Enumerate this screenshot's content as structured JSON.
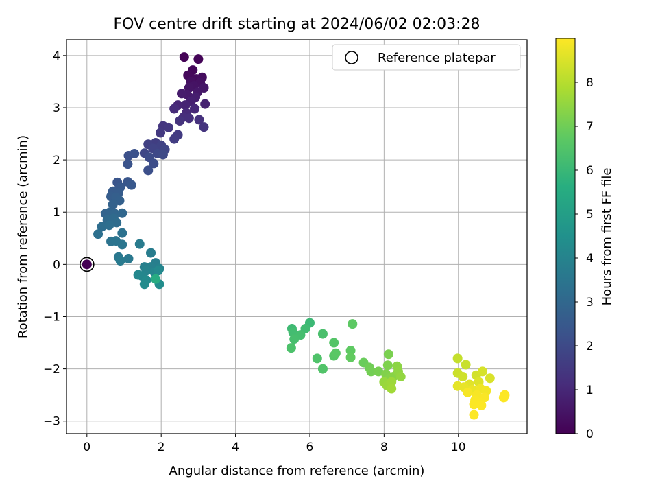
{
  "chart_data": {
    "type": "scatter",
    "title": "FOV centre drift starting at 2024/06/02 02:03:28",
    "xlabel": "Angular distance from reference (arcmin)",
    "ylabel": "Rotation from reference (arcmin)",
    "xlim": [
      -0.55,
      11.85
    ],
    "ylim": [
      -3.24,
      4.3
    ],
    "xticks": [
      0,
      2,
      4,
      6,
      8,
      10
    ],
    "yticks": [
      -3,
      -2,
      -1,
      0,
      1,
      2,
      3,
      4
    ],
    "grid": true,
    "legend": {
      "placement": "top-right",
      "entries": [
        "Reference platepar"
      ]
    },
    "colorbar": {
      "label": "Hours from first FF file",
      "min": 0,
      "max": 9.0,
      "ticks": [
        0,
        1,
        2,
        3,
        4,
        5,
        6,
        7,
        8
      ],
      "colormap": "viridis"
    },
    "reference_point": {
      "x": 0,
      "y": 0,
      "label": "Reference platepar"
    },
    "points": [
      {
        "x": 2.62,
        "y": 3.97,
        "h": 0.05
      },
      {
        "x": 3.0,
        "y": 3.93,
        "h": 0.1
      },
      {
        "x": 2.85,
        "y": 3.72,
        "h": 0.15
      },
      {
        "x": 2.72,
        "y": 3.62,
        "h": 0.2
      },
      {
        "x": 2.95,
        "y": 3.55,
        "h": 0.25
      },
      {
        "x": 3.1,
        "y": 3.58,
        "h": 0.3
      },
      {
        "x": 2.8,
        "y": 3.5,
        "h": 0.35
      },
      {
        "x": 3.05,
        "y": 3.48,
        "h": 0.4
      },
      {
        "x": 2.88,
        "y": 3.42,
        "h": 0.45
      },
      {
        "x": 2.75,
        "y": 3.38,
        "h": 0.5
      },
      {
        "x": 3.15,
        "y": 3.38,
        "h": 0.55
      },
      {
        "x": 2.98,
        "y": 3.3,
        "h": 0.6
      },
      {
        "x": 2.7,
        "y": 3.25,
        "h": 0.65
      },
      {
        "x": 2.55,
        "y": 3.27,
        "h": 0.7
      },
      {
        "x": 2.92,
        "y": 3.2,
        "h": 0.75
      },
      {
        "x": 2.8,
        "y": 3.12,
        "h": 0.8
      },
      {
        "x": 3.18,
        "y": 3.07,
        "h": 0.85
      },
      {
        "x": 2.65,
        "y": 3.05,
        "h": 0.9
      },
      {
        "x": 2.45,
        "y": 3.05,
        "h": 0.95
      },
      {
        "x": 2.9,
        "y": 2.98,
        "h": 1.0
      },
      {
        "x": 2.68,
        "y": 2.9,
        "h": 1.05
      },
      {
        "x": 2.35,
        "y": 2.98,
        "h": 1.1
      },
      {
        "x": 2.6,
        "y": 2.82,
        "h": 1.15
      },
      {
        "x": 2.75,
        "y": 2.8,
        "h": 1.2
      },
      {
        "x": 3.02,
        "y": 2.77,
        "h": 1.25
      },
      {
        "x": 2.5,
        "y": 2.75,
        "h": 1.3
      },
      {
        "x": 3.15,
        "y": 2.63,
        "h": 1.35
      },
      {
        "x": 2.05,
        "y": 2.65,
        "h": 1.4
      },
      {
        "x": 2.2,
        "y": 2.62,
        "h": 1.45
      },
      {
        "x": 1.98,
        "y": 2.52,
        "h": 1.5
      },
      {
        "x": 2.45,
        "y": 2.48,
        "h": 1.55
      },
      {
        "x": 2.35,
        "y": 2.4,
        "h": 1.6
      },
      {
        "x": 1.85,
        "y": 2.33,
        "h": 1.65
      },
      {
        "x": 1.65,
        "y": 2.3,
        "h": 1.7
      },
      {
        "x": 2.0,
        "y": 2.28,
        "h": 1.75
      },
      {
        "x": 1.78,
        "y": 2.22,
        "h": 1.8
      },
      {
        "x": 2.1,
        "y": 2.2,
        "h": 1.85
      },
      {
        "x": 1.55,
        "y": 2.13,
        "h": 1.9
      },
      {
        "x": 1.9,
        "y": 2.12,
        "h": 1.95
      },
      {
        "x": 2.05,
        "y": 2.1,
        "h": 2.0
      },
      {
        "x": 1.68,
        "y": 2.05,
        "h": 2.05
      },
      {
        "x": 1.8,
        "y": 1.93,
        "h": 2.1
      },
      {
        "x": 1.65,
        "y": 1.8,
        "h": 2.15
      },
      {
        "x": 1.12,
        "y": 2.08,
        "h": 2.2
      },
      {
        "x": 1.28,
        "y": 2.12,
        "h": 2.25
      },
      {
        "x": 1.1,
        "y": 1.92,
        "h": 2.3
      },
      {
        "x": 0.82,
        "y": 1.57,
        "h": 2.35
      },
      {
        "x": 1.1,
        "y": 1.58,
        "h": 2.4
      },
      {
        "x": 1.2,
        "y": 1.52,
        "h": 2.45
      },
      {
        "x": 0.9,
        "y": 1.48,
        "h": 2.5
      },
      {
        "x": 0.7,
        "y": 1.4,
        "h": 2.55
      },
      {
        "x": 0.85,
        "y": 1.37,
        "h": 2.6
      },
      {
        "x": 0.65,
        "y": 1.3,
        "h": 2.65
      },
      {
        "x": 0.78,
        "y": 1.28,
        "h": 2.7
      },
      {
        "x": 0.88,
        "y": 1.22,
        "h": 2.75
      },
      {
        "x": 0.7,
        "y": 1.15,
        "h": 2.8
      },
      {
        "x": 0.5,
        "y": 0.97,
        "h": 2.85
      },
      {
        "x": 0.62,
        "y": 1.0,
        "h": 2.9
      },
      {
        "x": 0.75,
        "y": 0.97,
        "h": 2.95
      },
      {
        "x": 0.95,
        "y": 0.98,
        "h": 3.0
      },
      {
        "x": 0.55,
        "y": 0.85,
        "h": 3.05
      },
      {
        "x": 0.72,
        "y": 0.88,
        "h": 3.1
      },
      {
        "x": 0.8,
        "y": 0.8,
        "h": 3.15
      },
      {
        "x": 0.4,
        "y": 0.72,
        "h": 3.2
      },
      {
        "x": 0.6,
        "y": 0.75,
        "h": 3.25
      },
      {
        "x": 0.3,
        "y": 0.58,
        "h": 3.3
      },
      {
        "x": 0.95,
        "y": 0.6,
        "h": 3.35
      },
      {
        "x": 0.65,
        "y": 0.44,
        "h": 3.4
      },
      {
        "x": 0.78,
        "y": 0.45,
        "h": 3.45
      },
      {
        "x": 0.95,
        "y": 0.38,
        "h": 3.5
      },
      {
        "x": 0.85,
        "y": 0.14,
        "h": 3.55
      },
      {
        "x": 1.12,
        "y": 0.11,
        "h": 3.6
      },
      {
        "x": 0.9,
        "y": 0.07,
        "h": 3.65
      },
      {
        "x": 1.42,
        "y": 0.39,
        "h": 3.7
      },
      {
        "x": 1.72,
        "y": 0.22,
        "h": 3.75
      },
      {
        "x": 1.85,
        "y": 0.03,
        "h": 3.8
      },
      {
        "x": 1.55,
        "y": -0.05,
        "h": 3.85
      },
      {
        "x": 1.72,
        "y": -0.05,
        "h": 3.9
      },
      {
        "x": 1.95,
        "y": -0.08,
        "h": 3.95
      },
      {
        "x": 1.6,
        "y": -0.12,
        "h": 4.0
      },
      {
        "x": 1.82,
        "y": -0.15,
        "h": 4.05
      },
      {
        "x": 1.48,
        "y": -0.22,
        "h": 4.1
      },
      {
        "x": 1.38,
        "y": -0.2,
        "h": 4.15
      },
      {
        "x": 1.92,
        "y": -0.12,
        "h": 4.2
      },
      {
        "x": 1.6,
        "y": -0.3,
        "h": 4.25
      },
      {
        "x": 1.55,
        "y": -0.38,
        "h": 4.3
      },
      {
        "x": 1.95,
        "y": -0.38,
        "h": 4.35
      },
      {
        "x": 1.85,
        "y": -0.28,
        "h": 5.5
      },
      {
        "x": 6.0,
        "y": -1.12,
        "h": 6.05
      },
      {
        "x": 5.52,
        "y": -1.23,
        "h": 6.1
      },
      {
        "x": 5.88,
        "y": -1.23,
        "h": 6.15
      },
      {
        "x": 5.55,
        "y": -1.3,
        "h": 6.2
      },
      {
        "x": 5.75,
        "y": -1.35,
        "h": 6.25
      },
      {
        "x": 5.58,
        "y": -1.43,
        "h": 6.3
      },
      {
        "x": 6.35,
        "y": -1.33,
        "h": 6.35
      },
      {
        "x": 5.5,
        "y": -1.6,
        "h": 6.4
      },
      {
        "x": 6.2,
        "y": -1.8,
        "h": 6.45
      },
      {
        "x": 6.35,
        "y": -2.0,
        "h": 6.5
      },
      {
        "x": 6.65,
        "y": -1.5,
        "h": 6.55
      },
      {
        "x": 6.65,
        "y": -1.75,
        "h": 6.6
      },
      {
        "x": 6.7,
        "y": -1.7,
        "h": 6.65
      },
      {
        "x": 7.15,
        "y": -1.14,
        "h": 6.7
      },
      {
        "x": 7.1,
        "y": -1.65,
        "h": 6.75
      },
      {
        "x": 7.1,
        "y": -1.78,
        "h": 6.8
      },
      {
        "x": 7.45,
        "y": -1.88,
        "h": 6.9
      },
      {
        "x": 7.6,
        "y": -1.97,
        "h": 7.0
      },
      {
        "x": 7.65,
        "y": -2.05,
        "h": 7.05
      },
      {
        "x": 7.85,
        "y": -2.05,
        "h": 7.1
      },
      {
        "x": 8.12,
        "y": -1.72,
        "h": 7.15
      },
      {
        "x": 8.1,
        "y": -1.93,
        "h": 7.2
      },
      {
        "x": 8.05,
        "y": -2.1,
        "h": 7.25
      },
      {
        "x": 8.15,
        "y": -2.18,
        "h": 7.3
      },
      {
        "x": 8.25,
        "y": -2.15,
        "h": 7.35
      },
      {
        "x": 8.35,
        "y": -1.95,
        "h": 7.4
      },
      {
        "x": 8.38,
        "y": -2.05,
        "h": 7.45
      },
      {
        "x": 8.45,
        "y": -2.15,
        "h": 7.5
      },
      {
        "x": 8.0,
        "y": -2.25,
        "h": 7.55
      },
      {
        "x": 8.08,
        "y": -2.32,
        "h": 7.6
      },
      {
        "x": 8.2,
        "y": -2.25,
        "h": 7.65
      },
      {
        "x": 8.2,
        "y": -2.38,
        "h": 7.7
      },
      {
        "x": 9.98,
        "y": -1.8,
        "h": 8.2
      },
      {
        "x": 10.2,
        "y": -1.92,
        "h": 8.25
      },
      {
        "x": 9.98,
        "y": -2.08,
        "h": 8.3
      },
      {
        "x": 10.12,
        "y": -2.15,
        "h": 8.35
      },
      {
        "x": 10.48,
        "y": -2.12,
        "h": 8.4
      },
      {
        "x": 10.65,
        "y": -2.05,
        "h": 8.45
      },
      {
        "x": 10.85,
        "y": -2.18,
        "h": 8.5
      },
      {
        "x": 10.55,
        "y": -2.25,
        "h": 8.55
      },
      {
        "x": 10.3,
        "y": -2.3,
        "h": 8.6
      },
      {
        "x": 9.98,
        "y": -2.33,
        "h": 8.65
      },
      {
        "x": 10.15,
        "y": -2.35,
        "h": 8.7
      },
      {
        "x": 10.38,
        "y": -2.4,
        "h": 8.75
      },
      {
        "x": 10.6,
        "y": -2.38,
        "h": 8.8
      },
      {
        "x": 10.75,
        "y": -2.42,
        "h": 8.85
      },
      {
        "x": 10.25,
        "y": -2.45,
        "h": 8.9
      },
      {
        "x": 10.5,
        "y": -2.5,
        "h": 8.92
      },
      {
        "x": 10.7,
        "y": -2.55,
        "h": 8.94
      },
      {
        "x": 10.45,
        "y": -2.6,
        "h": 8.95
      },
      {
        "x": 10.6,
        "y": -2.65,
        "h": 8.96
      },
      {
        "x": 10.42,
        "y": -2.68,
        "h": 8.97
      },
      {
        "x": 10.62,
        "y": -2.7,
        "h": 8.98
      },
      {
        "x": 11.25,
        "y": -2.5,
        "h": 8.99
      },
      {
        "x": 11.22,
        "y": -2.55,
        "h": 8.99
      },
      {
        "x": 10.42,
        "y": -2.88,
        "h": 8.99
      }
    ]
  }
}
